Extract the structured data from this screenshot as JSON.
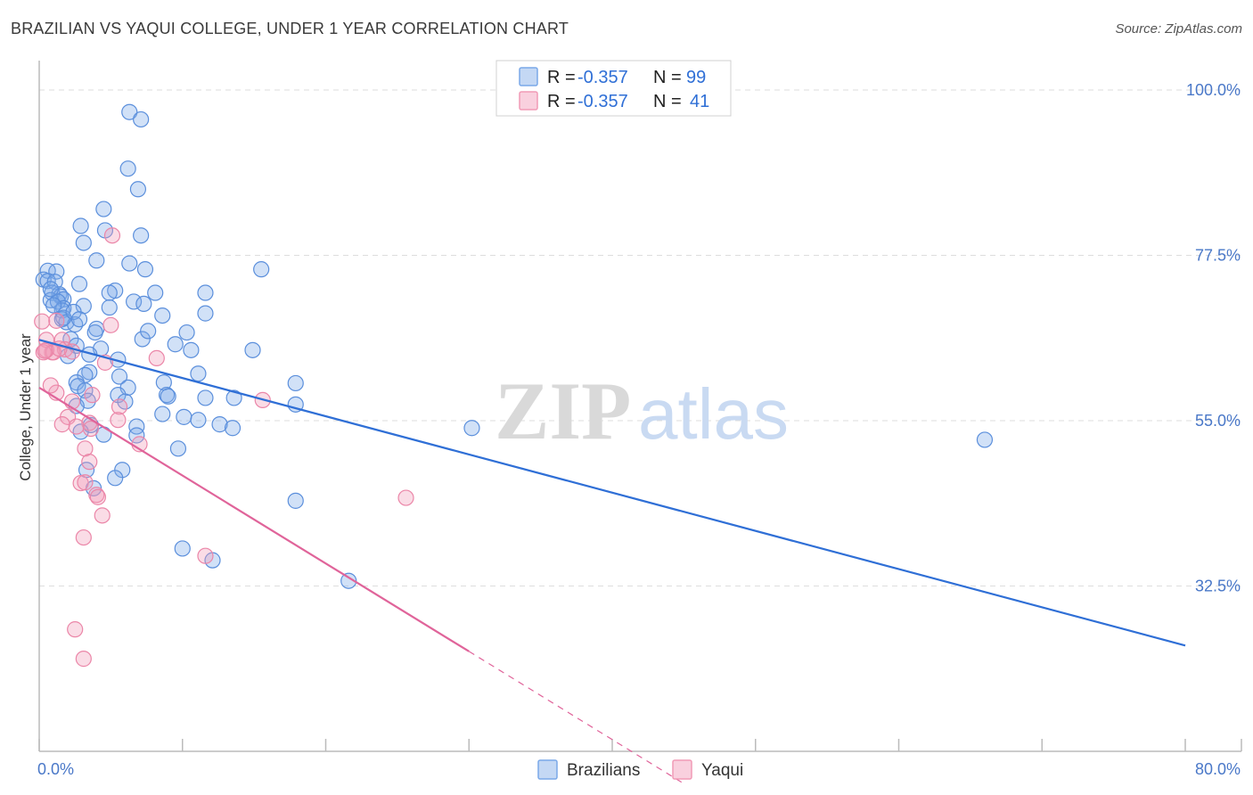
{
  "title": "BRAZILIAN VS YAQUI COLLEGE, UNDER 1 YEAR CORRELATION CHART",
  "source": "Source: ZipAtlas.com",
  "watermark": {
    "zip": "ZIP",
    "atlas": "atlas"
  },
  "legend": {
    "r_label": "R =",
    "n_label": "N =",
    "rows": [
      {
        "r": "-0.357",
        "n": "99",
        "color": "#7aa8e8"
      },
      {
        "r": "-0.357",
        "n": "41",
        "color": "#f19ab6"
      }
    ]
  },
  "bottom_legend": [
    {
      "label": "Brazilians",
      "color": "#7aa8e8"
    },
    {
      "label": "Yaqui",
      "color": "#f19ab6"
    }
  ],
  "chart_data": {
    "type": "scatter",
    "title": "BRAZILIAN VS YAQUI COLLEGE, UNDER 1 YEAR CORRELATION CHART",
    "xlabel": "",
    "ylabel": "College, Under 1 year",
    "xlim": [
      0,
      80
    ],
    "ylim": [
      10,
      104
    ],
    "x_tick_labels": [
      "0.0%",
      "80.0%"
    ],
    "y_tick_labels": [
      "100.0%",
      "77.5%",
      "55.0%",
      "32.5%"
    ],
    "y_ticks": [
      100,
      77.5,
      55,
      32.5
    ],
    "grid": true,
    "series": [
      {
        "name": "Brazilians",
        "color": "#7aa8e8",
        "line_color": "#2f6fd6",
        "trend": {
          "x": [
            0,
            80
          ],
          "y": [
            66.0,
            24.4
          ]
        },
        "points": [
          [
            6.3,
            97
          ],
          [
            7.1,
            96
          ],
          [
            6.2,
            89.3
          ],
          [
            6.9,
            86.5
          ],
          [
            4.5,
            83.8
          ],
          [
            2.9,
            81.5
          ],
          [
            4.6,
            80.9
          ],
          [
            7.1,
            80.2
          ],
          [
            3.1,
            79.2
          ],
          [
            4.0,
            76.8
          ],
          [
            6.3,
            76.4
          ],
          [
            7.4,
            75.6
          ],
          [
            15.5,
            75.6
          ],
          [
            0.6,
            75.4
          ],
          [
            1.2,
            75.3
          ],
          [
            0.3,
            74.2
          ],
          [
            0.6,
            74.0
          ],
          [
            1.1,
            73.9
          ],
          [
            2.8,
            73.6
          ],
          [
            5.3,
            72.7
          ],
          [
            0.9,
            72.4
          ],
          [
            4.9,
            72.4
          ],
          [
            8.1,
            72.4
          ],
          [
            11.6,
            72.4
          ],
          [
            1.4,
            72.2
          ],
          [
            1.5,
            71.9
          ],
          [
            1.7,
            71.5
          ],
          [
            0.8,
            71.4
          ],
          [
            1.3,
            71.2
          ],
          [
            6.6,
            71.2
          ],
          [
            7.3,
            70.9
          ],
          [
            3.1,
            70.6
          ],
          [
            4.9,
            70.4
          ],
          [
            1.7,
            70.3
          ],
          [
            1.6,
            70.0
          ],
          [
            11.6,
            69.6
          ],
          [
            8.6,
            69.3
          ],
          [
            1.6,
            68.8
          ],
          [
            1.9,
            68.4
          ],
          [
            2.5,
            68.1
          ],
          [
            4.0,
            67.5
          ],
          [
            10.3,
            67.0
          ],
          [
            2.2,
            66.1
          ],
          [
            7.2,
            66.1
          ],
          [
            9.5,
            65.4
          ],
          [
            2.6,
            65.2
          ],
          [
            4.3,
            64.8
          ],
          [
            10.6,
            64.6
          ],
          [
            14.9,
            64.6
          ],
          [
            3.5,
            64.0
          ],
          [
            2.0,
            63.8
          ],
          [
            5.5,
            63.3
          ],
          [
            3.5,
            61.6
          ],
          [
            11.1,
            61.4
          ],
          [
            3.2,
            61.2
          ],
          [
            5.6,
            61.0
          ],
          [
            2.6,
            60.2
          ],
          [
            8.7,
            60.2
          ],
          [
            17.9,
            60.1
          ],
          [
            2.7,
            59.7
          ],
          [
            6.2,
            59.5
          ],
          [
            3.2,
            59.1
          ],
          [
            5.5,
            58.5
          ],
          [
            8.9,
            58.5
          ],
          [
            9.0,
            58.3
          ],
          [
            11.6,
            58.1
          ],
          [
            13.6,
            58.1
          ],
          [
            3.4,
            57.7
          ],
          [
            6.0,
            57.6
          ],
          [
            17.9,
            57.2
          ],
          [
            2.6,
            57.0
          ],
          [
            8.6,
            55.9
          ],
          [
            10.1,
            55.5
          ],
          [
            11.1,
            55.1
          ],
          [
            12.6,
            54.5
          ],
          [
            3.6,
            54.4
          ],
          [
            6.8,
            54.2
          ],
          [
            13.5,
            54.0
          ],
          [
            30.2,
            54.0
          ],
          [
            2.9,
            53.5
          ],
          [
            4.5,
            53.1
          ],
          [
            6.8,
            53.0
          ],
          [
            66.0,
            52.4
          ],
          [
            9.7,
            51.2
          ],
          [
            3.3,
            48.3
          ],
          [
            5.8,
            48.3
          ],
          [
            5.3,
            47.2
          ],
          [
            3.8,
            45.8
          ],
          [
            17.9,
            44.1
          ],
          [
            10.0,
            37.6
          ],
          [
            12.1,
            36.0
          ],
          [
            21.6,
            33.2
          ],
          [
            1.7,
            69.0
          ],
          [
            2.4,
            69.8
          ],
          [
            3.9,
            67.0
          ],
          [
            1.0,
            70.7
          ],
          [
            7.6,
            67.2
          ],
          [
            0.8,
            72.9
          ],
          [
            2.8,
            68.8
          ]
        ]
      },
      {
        "name": "Yaqui",
        "color": "#f19ab6",
        "line_color": "#e0649a",
        "trend_solid": {
          "x": [
            0,
            30
          ],
          "y": [
            59.5,
            23.6
          ]
        },
        "trend_dashed": {
          "x": [
            30,
            45
          ],
          "y": [
            23.6,
            5.6
          ]
        },
        "points": [
          [
            0.2,
            68.5
          ],
          [
            5.1,
            80.2
          ],
          [
            5.0,
            68.0
          ],
          [
            1.2,
            68.6
          ],
          [
            1.6,
            66.0
          ],
          [
            0.5,
            66.0
          ],
          [
            1.8,
            64.7
          ],
          [
            0.9,
            64.3
          ],
          [
            0.5,
            64.6
          ],
          [
            2.3,
            64.4
          ],
          [
            1.0,
            64.3
          ],
          [
            0.3,
            64.3
          ],
          [
            0.4,
            64.5
          ],
          [
            1.4,
            64.8
          ],
          [
            8.2,
            63.5
          ],
          [
            4.6,
            62.9
          ],
          [
            1.2,
            58.8
          ],
          [
            3.7,
            58.5
          ],
          [
            15.6,
            57.8
          ],
          [
            0.8,
            59.8
          ],
          [
            2.3,
            57.6
          ],
          [
            2.0,
            55.5
          ],
          [
            5.6,
            56.9
          ],
          [
            5.5,
            55.1
          ],
          [
            3.5,
            54.7
          ],
          [
            1.6,
            54.5
          ],
          [
            2.6,
            54.2
          ],
          [
            3.6,
            53.9
          ],
          [
            7.0,
            51.8
          ],
          [
            3.2,
            51.2
          ],
          [
            3.5,
            49.4
          ],
          [
            2.9,
            46.5
          ],
          [
            25.6,
            44.5
          ],
          [
            4.0,
            44.9
          ],
          [
            4.1,
            44.6
          ],
          [
            4.4,
            42.1
          ],
          [
            3.1,
            39.1
          ],
          [
            11.6,
            36.6
          ],
          [
            2.5,
            26.6
          ],
          [
            3.1,
            22.6
          ],
          [
            3.2,
            46.6
          ]
        ]
      }
    ]
  }
}
